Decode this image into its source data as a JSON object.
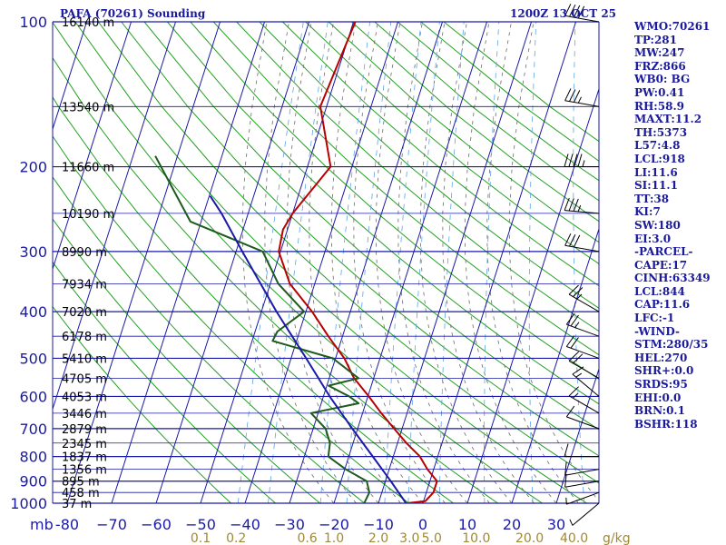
{
  "header": {
    "station": "PAFA (70261) Sounding",
    "time": "1200Z 13 OCT 25"
  },
  "indices": [
    "WMO:70261",
    "TP:281",
    "MW:247",
    "FRZ:866",
    "WB0: BG",
    "PW:0.41",
    "RH:58.9",
    "MAXT:11.2",
    "TH:5373",
    "L57:4.8",
    "LCL:918",
    "LI:11.6",
    "SI:11.1",
    "TT:38",
    "KI:7",
    "SW:180",
    "EI:3.0",
    "-PARCEL-",
    "CAPE:17",
    "CINH:63349",
    "LCL:844",
    "CAP:11.6",
    "LFC:-1",
    "-WIND-",
    "STM:280/35",
    "HEL:270",
    "SHR+:0.0",
    "SRDS:95",
    "EHI:0.0",
    "BRN:0.1",
    "BSHR:118"
  ],
  "chart_data": {
    "type": "line",
    "xunit_label": "mb",
    "mix_unit_label": "g/kg",
    "pressure_levels": [
      100,
      200,
      300,
      400,
      500,
      600,
      700,
      800,
      900,
      1000
    ],
    "pressure_tick_labels": [
      "100",
      "200",
      "300",
      "400",
      "500",
      "600",
      "700",
      "800",
      "900",
      "1000"
    ],
    "temperature_ticks": [
      -80,
      -70,
      -60,
      -50,
      -40,
      -30,
      -20,
      -10,
      0,
      10,
      20,
      30
    ],
    "temperature_tick_labels": [
      "-80",
      "−70",
      "−60",
      "−50",
      "−40",
      "−30",
      "−20",
      "−10",
      "0",
      "10",
      "20",
      "30"
    ],
    "mixing_ratio_labels": [
      {
        "text": "0.1",
        "t": -50
      },
      {
        "text": "0.2",
        "t": -42
      },
      {
        "text": "0.6",
        "t": -26
      },
      {
        "text": "1.0",
        "t": -20
      },
      {
        "text": "2.0",
        "t": -10
      },
      {
        "text": "3.0",
        "t": -3
      },
      {
        "text": "5.0",
        "t": 2
      },
      {
        "text": "10.0",
        "t": 12
      },
      {
        "text": "20.0",
        "t": 24
      },
      {
        "text": "40.0",
        "t": 34
      }
    ],
    "heights": [
      {
        "p": 100,
        "label": "16140 m"
      },
      {
        "p": 150,
        "label": "13540 m"
      },
      {
        "p": 200,
        "label": "11660 m"
      },
      {
        "p": 250,
        "label": "10190 m"
      },
      {
        "p": 300,
        "label": "8990 m"
      },
      {
        "p": 350,
        "label": "7934 m"
      },
      {
        "p": 400,
        "label": "7020 m"
      },
      {
        "p": 450,
        "label": "6178 m"
      },
      {
        "p": 500,
        "label": "5410 m"
      },
      {
        "p": 550,
        "label": "4705 m"
      },
      {
        "p": 600,
        "label": "4053 m"
      },
      {
        "p": 650,
        "label": "3446 m"
      },
      {
        "p": 700,
        "label": "2879 m"
      },
      {
        "p": 750,
        "label": "2345 m"
      },
      {
        "p": 800,
        "label": "1837 m"
      },
      {
        "p": 850,
        "label": "1356 m"
      },
      {
        "p": 900,
        "label": "895 m"
      },
      {
        "p": 950,
        "label": "458 m"
      },
      {
        "p": 1000,
        "label": "37 m"
      }
    ],
    "series": [
      {
        "name": "temperature",
        "color": "#b80000",
        "points": [
          {
            "p": 1000,
            "t": -3.6
          },
          {
            "p": 990,
            "t": 0.4
          },
          {
            "p": 950,
            "t": 1.6
          },
          {
            "p": 900,
            "t": 1.6
          },
          {
            "p": 850,
            "t": -1.4
          },
          {
            "p": 800,
            "t": -4
          },
          {
            "p": 750,
            "t": -8
          },
          {
            "p": 700,
            "t": -11.8
          },
          {
            "p": 650,
            "t": -15.8
          },
          {
            "p": 600,
            "t": -19.8
          },
          {
            "p": 550,
            "t": -24.4
          },
          {
            "p": 500,
            "t": -28
          },
          {
            "p": 450,
            "t": -33.2
          },
          {
            "p": 400,
            "t": -38.6
          },
          {
            "p": 350,
            "t": -45.6
          },
          {
            "p": 300,
            "t": -50.4
          },
          {
            "p": 270,
            "t": -51
          },
          {
            "p": 250,
            "t": -50
          },
          {
            "p": 200,
            "t": -44.8
          },
          {
            "p": 150,
            "t": -51.4
          },
          {
            "p": 100,
            "t": -49.6
          }
        ]
      },
      {
        "name": "dewpoint",
        "color": "#1d5a1d",
        "points": [
          {
            "p": 1000,
            "t": -13.2
          },
          {
            "p": 950,
            "t": -12.8
          },
          {
            "p": 900,
            "t": -14.2
          },
          {
            "p": 850,
            "t": -19.8
          },
          {
            "p": 800,
            "t": -24.6
          },
          {
            "p": 750,
            "t": -25.2
          },
          {
            "p": 700,
            "t": -27.2
          },
          {
            "p": 650,
            "t": -31.6
          },
          {
            "p": 620,
            "t": -21.6
          },
          {
            "p": 600,
            "t": -24.2
          },
          {
            "p": 570,
            "t": -29.6
          },
          {
            "p": 550,
            "t": -23.4
          },
          {
            "p": 500,
            "t": -30.6
          },
          {
            "p": 460,
            "t": -45.4
          },
          {
            "p": 440,
            "t": -45
          },
          {
            "p": 400,
            "t": -40.4
          },
          {
            "p": 350,
            "t": -48.2
          },
          {
            "p": 300,
            "t": -54
          },
          {
            "p": 260,
            "t": -72.4
          },
          {
            "p": 190,
            "t": -85
          }
        ]
      },
      {
        "name": "parcel",
        "color": "#1a1aa6",
        "points": [
          {
            "p": 1000,
            "t": -3.8
          },
          {
            "p": 900,
            "t": -8.8
          },
          {
            "p": 800,
            "t": -14.6
          },
          {
            "p": 700,
            "t": -21.2
          },
          {
            "p": 600,
            "t": -28.6
          },
          {
            "p": 500,
            "t": -36.6
          },
          {
            "p": 400,
            "t": -46.6
          },
          {
            "p": 300,
            "t": -58.6
          },
          {
            "p": 250,
            "t": -66
          },
          {
            "p": 230,
            "t": -69.8
          }
        ]
      }
    ],
    "wind_barbs": [
      {
        "p": 100,
        "dir": 280,
        "spd": 40
      },
      {
        "p": 150,
        "dir": 280,
        "spd": 35
      },
      {
        "p": 200,
        "dir": 270,
        "spd": 45
      },
      {
        "p": 250,
        "dir": 275,
        "spd": 35
      },
      {
        "p": 300,
        "dir": 280,
        "spd": 30
      },
      {
        "p": 400,
        "dir": 300,
        "spd": 25
      },
      {
        "p": 450,
        "dir": 290,
        "spd": 25
      },
      {
        "p": 500,
        "dir": 290,
        "spd": 20
      },
      {
        "p": 550,
        "dir": 300,
        "spd": 20
      },
      {
        "p": 600,
        "dir": 310,
        "spd": 15
      },
      {
        "p": 650,
        "dir": 300,
        "spd": 15
      },
      {
        "p": 700,
        "dir": 290,
        "spd": 10
      },
      {
        "p": 800,
        "dir": 270,
        "spd": 10
      },
      {
        "p": 850,
        "dir": 260,
        "spd": 10
      },
      {
        "p": 900,
        "dir": 260,
        "spd": 10
      },
      {
        "p": 950,
        "dir": 250,
        "spd": 5
      },
      {
        "p": 1000,
        "dir": 230,
        "spd": 5
      }
    ]
  }
}
